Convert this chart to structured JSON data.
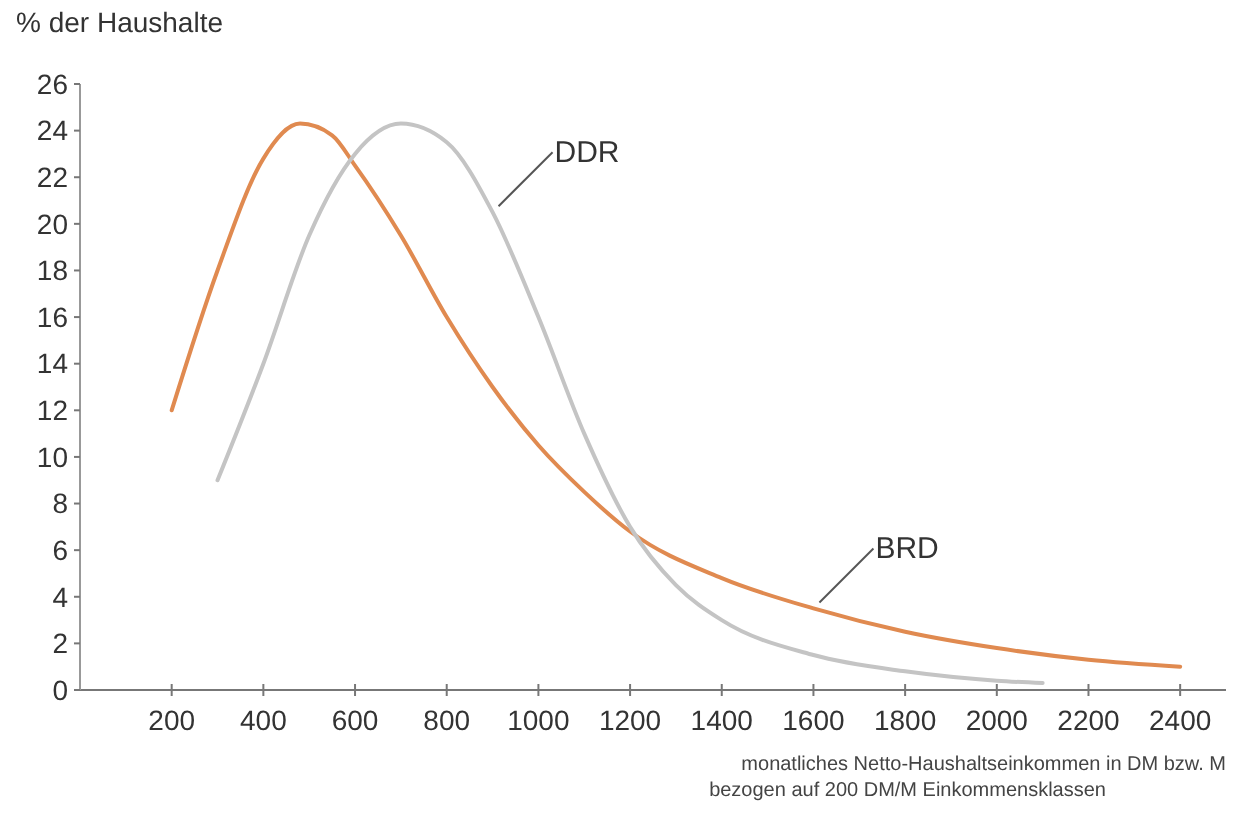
{
  "chart_data": {
    "type": "line",
    "ylabel": "% der Haushalte",
    "xlabel": "monatliches Netto-Haushaltseinkommen in DM bzw. M\nbezogen auf 200 DM/M Einkommensklassen",
    "xlim": [
      0,
      2500
    ],
    "xticks": [
      200,
      400,
      600,
      800,
      1000,
      1200,
      1400,
      1600,
      1800,
      2000,
      2200,
      2400
    ],
    "ylim": [
      0,
      26
    ],
    "yticks": [
      0,
      2,
      4,
      6,
      8,
      10,
      12,
      14,
      16,
      18,
      20,
      22,
      24,
      26
    ],
    "grid": false,
    "legend": false,
    "marker": "none",
    "line_style": "solid",
    "series": [
      {
        "name": "BRD",
        "color": "#e08a50",
        "x": [
          200,
          300,
          400,
          480,
          550,
          600,
          700,
          800,
          900,
          1000,
          1100,
          1200,
          1400,
          1600,
          1800,
          2000,
          2200,
          2400
        ],
        "values": [
          12,
          18,
          22.8,
          24.3,
          23.8,
          22.5,
          19.5,
          16,
          13,
          10.5,
          8.5,
          6.8,
          4.8,
          3.5,
          2.5,
          1.8,
          1.3,
          1
        ]
      },
      {
        "name": "DDR",
        "color": "#c4c4c4",
        "x": [
          300,
          400,
          500,
          600,
          700,
          800,
          900,
          1000,
          1100,
          1200,
          1300,
          1400,
          1600,
          1800,
          2000,
          2100
        ],
        "values": [
          9,
          14,
          19.5,
          23,
          24.3,
          23.5,
          20.5,
          16,
          11,
          7,
          4.5,
          3,
          1.5,
          0.8,
          0.4,
          0.3
        ]
      }
    ]
  }
}
